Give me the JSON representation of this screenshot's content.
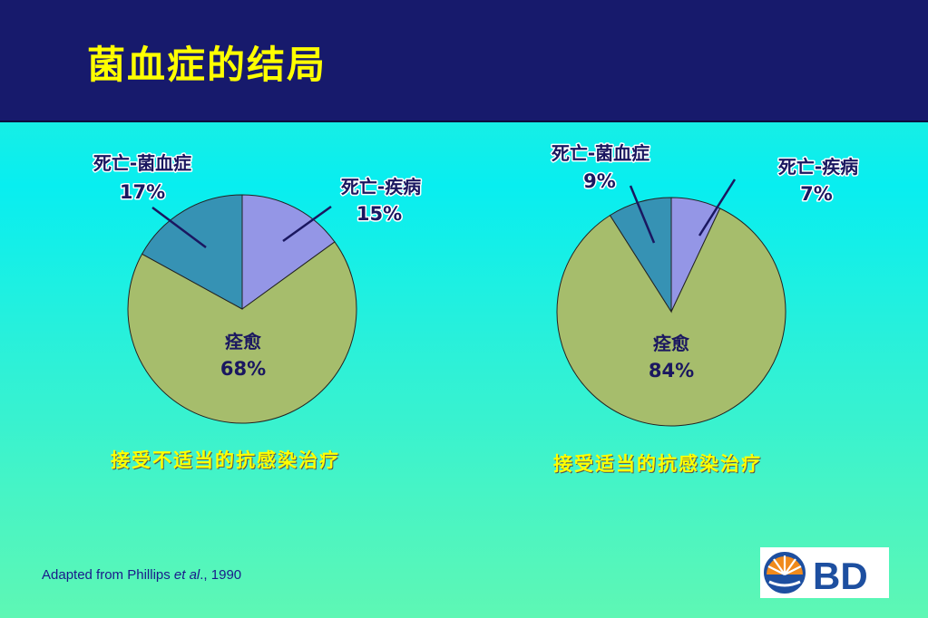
{
  "header": {
    "title": "菌血症的结局"
  },
  "chart_data": [
    {
      "type": "pie",
      "title": "",
      "caption": "接受不适当的抗感染治疗",
      "slices": [
        {
          "label": "死亡-疾病",
          "value": 15,
          "value_label": "15%",
          "color": "#9496e6"
        },
        {
          "label": "痊愈",
          "value": 68,
          "value_label": "68%",
          "color": "#a6bd6c"
        },
        {
          "label": "死亡-菌血症",
          "value": 17,
          "value_label": "17%",
          "color": "#3692b4"
        }
      ]
    },
    {
      "type": "pie",
      "title": "",
      "caption": "接受适当的抗感染治疗",
      "slices": [
        {
          "label": "死亡-疾病",
          "value": 7,
          "value_label": "7%",
          "color": "#9496e6"
        },
        {
          "label": "痊愈",
          "value": 84,
          "value_label": "84%",
          "color": "#a6bd6c"
        },
        {
          "label": "死亡-菌血症",
          "value": 9,
          "value_label": "9%",
          "color": "#3692b4"
        }
      ]
    }
  ],
  "footer": {
    "source_prefix": "Adapted from Phillips ",
    "source_italic": "et al",
    "source_suffix": "., 1990",
    "logo_text": "BD"
  }
}
